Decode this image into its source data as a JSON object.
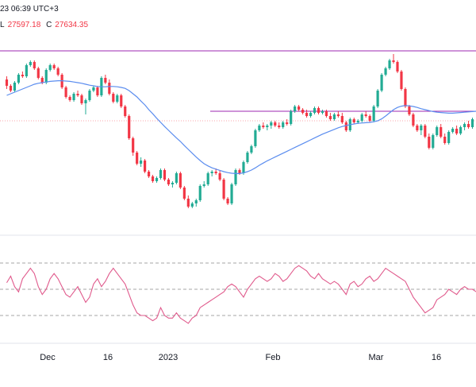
{
  "header": {
    "time_text": "23 06:39 UTC+3",
    "low_label": "L",
    "low_value": "27597.18",
    "close_label": "C",
    "close_value": "27634.35"
  },
  "colors": {
    "up": "#22ab94",
    "down": "#f23645",
    "ma": "#5b8def",
    "rsi": "#e05a8c",
    "hline": "#9c27b0",
    "dashed": "#888888",
    "grid_sep": "#e0e3eb",
    "text": "#131722"
  },
  "chart_data": {
    "type": "candlestick",
    "x_ticks": [
      "Dec",
      "16",
      "2023",
      "Feb",
      "Mar",
      "16"
    ],
    "candles": [
      [
        2.5,
        2.6,
        2.2,
        2.3
      ],
      [
        2.3,
        2.35,
        2.1,
        2.15
      ],
      [
        2.15,
        2.45,
        2.1,
        2.4
      ],
      [
        2.4,
        2.7,
        2.35,
        2.65
      ],
      [
        2.65,
        2.75,
        2.55,
        2.6
      ],
      [
        2.6,
        3.0,
        2.55,
        2.95
      ],
      [
        2.95,
        3.1,
        2.9,
        3.05
      ],
      [
        3.05,
        3.1,
        2.8,
        2.85
      ],
      [
        2.85,
        2.9,
        2.5,
        2.55
      ],
      [
        2.55,
        2.6,
        2.35,
        2.4
      ],
      [
        2.4,
        2.85,
        2.35,
        2.8
      ],
      [
        2.8,
        3.0,
        2.75,
        2.95
      ],
      [
        2.95,
        3.0,
        2.8,
        2.85
      ],
      [
        2.85,
        2.9,
        2.6,
        2.65
      ],
      [
        2.65,
        2.7,
        2.2,
        2.25
      ],
      [
        2.25,
        2.3,
        1.9,
        1.95
      ],
      [
        1.95,
        2.0,
        1.8,
        1.85
      ],
      [
        1.85,
        2.1,
        1.8,
        2.05
      ],
      [
        2.05,
        2.15,
        1.95,
        2.0
      ],
      [
        2.0,
        2.05,
        1.7,
        1.75
      ],
      [
        1.75,
        1.9,
        1.4,
        1.85
      ],
      [
        1.85,
        2.2,
        1.8,
        2.15
      ],
      [
        2.15,
        2.3,
        2.1,
        2.25
      ],
      [
        2.25,
        2.3,
        1.95,
        2.0
      ],
      [
        2.0,
        2.6,
        1.95,
        2.55
      ],
      [
        2.55,
        2.65,
        2.35,
        2.4
      ],
      [
        2.4,
        2.5,
        2.0,
        2.05
      ],
      [
        2.05,
        2.1,
        1.75,
        1.8
      ],
      [
        1.8,
        2.05,
        1.75,
        2.0
      ],
      [
        2.0,
        2.05,
        1.6,
        1.65
      ],
      [
        1.65,
        1.7,
        1.3,
        1.35
      ],
      [
        1.35,
        1.4,
        0.6,
        0.65
      ],
      [
        0.65,
        0.7,
        0.1,
        0.2
      ],
      [
        0.2,
        0.25,
        -0.2,
        -0.15
      ],
      [
        -0.15,
        0.05,
        -0.25,
        -0.05
      ],
      [
        -0.05,
        0.0,
        -0.45,
        -0.4
      ],
      [
        -0.4,
        -0.35,
        -0.6,
        -0.55
      ],
      [
        -0.55,
        -0.5,
        -0.75,
        -0.7
      ],
      [
        -0.7,
        -0.55,
        -0.75,
        -0.6
      ],
      [
        -0.6,
        -0.3,
        -0.65,
        -0.35
      ],
      [
        -0.35,
        -0.3,
        -0.7,
        -0.65
      ],
      [
        -0.65,
        -0.6,
        -0.85,
        -0.8
      ],
      [
        -0.8,
        -0.7,
        -0.9,
        -0.75
      ],
      [
        -0.75,
        -0.4,
        -0.8,
        -0.45
      ],
      [
        -0.45,
        -0.4,
        -0.95,
        -0.9
      ],
      [
        -0.9,
        -0.85,
        -1.3,
        -1.25
      ],
      [
        -1.25,
        -1.15,
        -1.55,
        -1.5
      ],
      [
        -1.5,
        -1.35,
        -1.55,
        -1.4
      ],
      [
        -1.4,
        -1.25,
        -1.5,
        -1.3
      ],
      [
        -1.3,
        -0.8,
        -1.35,
        -0.85
      ],
      [
        -0.85,
        -0.7,
        -0.9,
        -0.8
      ],
      [
        -0.8,
        -0.4,
        -0.85,
        -0.45
      ],
      [
        -0.45,
        -0.35,
        -0.55,
        -0.4
      ],
      [
        -0.4,
        -0.3,
        -0.5,
        -0.45
      ],
      [
        -0.45,
        -0.35,
        -0.7,
        -0.65
      ],
      [
        -0.65,
        -0.6,
        -1.3,
        -1.25
      ],
      [
        -1.25,
        -1.2,
        -1.45,
        -1.4
      ],
      [
        -1.4,
        -0.75,
        -1.45,
        -0.8
      ],
      [
        -0.8,
        -0.3,
        -0.85,
        -0.35
      ],
      [
        -0.35,
        -0.3,
        -0.5,
        -0.45
      ],
      [
        -0.45,
        -0.05,
        -0.5,
        -0.1
      ],
      [
        -0.1,
        0.25,
        -0.15,
        0.2
      ],
      [
        0.2,
        0.45,
        0.15,
        0.4
      ],
      [
        0.4,
        0.95,
        0.35,
        0.9
      ],
      [
        0.9,
        1.1,
        0.85,
        1.05
      ],
      [
        1.05,
        1.15,
        0.95,
        1.0
      ],
      [
        1.0,
        1.1,
        0.9,
        1.05
      ],
      [
        1.05,
        1.2,
        0.95,
        1.15
      ],
      [
        1.15,
        1.2,
        1.0,
        1.05
      ],
      [
        1.05,
        1.15,
        0.95,
        1.0
      ],
      [
        1.0,
        1.2,
        0.95,
        1.15
      ],
      [
        1.15,
        1.25,
        1.05,
        1.1
      ],
      [
        1.1,
        1.55,
        1.05,
        1.5
      ],
      [
        1.5,
        1.7,
        1.45,
        1.65
      ],
      [
        1.65,
        1.7,
        1.5,
        1.55
      ],
      [
        1.55,
        1.6,
        1.4,
        1.45
      ],
      [
        1.45,
        1.55,
        1.3,
        1.35
      ],
      [
        1.35,
        1.5,
        1.3,
        1.45
      ],
      [
        1.45,
        1.65,
        1.4,
        1.6
      ],
      [
        1.6,
        1.65,
        1.4,
        1.45
      ],
      [
        1.45,
        1.55,
        1.4,
        1.5
      ],
      [
        1.5,
        1.55,
        1.3,
        1.35
      ],
      [
        1.35,
        1.45,
        1.2,
        1.25
      ],
      [
        1.25,
        1.45,
        1.2,
        1.4
      ],
      [
        1.4,
        1.5,
        1.3,
        1.35
      ],
      [
        1.35,
        1.45,
        1.1,
        1.15
      ],
      [
        1.15,
        1.2,
        0.85,
        0.9
      ],
      [
        0.9,
        1.3,
        0.85,
        1.25
      ],
      [
        1.25,
        1.3,
        1.1,
        1.15
      ],
      [
        1.15,
        1.25,
        1.1,
        1.2
      ],
      [
        1.2,
        1.45,
        1.15,
        1.4
      ],
      [
        1.4,
        1.5,
        1.3,
        1.35
      ],
      [
        1.35,
        1.4,
        1.15,
        1.2
      ],
      [
        1.2,
        1.7,
        1.15,
        1.65
      ],
      [
        1.65,
        2.2,
        1.6,
        2.15
      ],
      [
        2.15,
        2.7,
        2.1,
        2.65
      ],
      [
        2.65,
        2.9,
        2.6,
        2.85
      ],
      [
        2.85,
        3.15,
        2.8,
        3.1
      ],
      [
        3.1,
        3.3,
        3.0,
        3.05
      ],
      [
        3.05,
        3.1,
        2.7,
        2.75
      ],
      [
        2.75,
        2.8,
        2.15,
        2.2
      ],
      [
        2.2,
        2.25,
        1.6,
        1.65
      ],
      [
        1.65,
        1.7,
        1.35,
        1.4
      ],
      [
        1.4,
        1.45,
        1.0,
        1.05
      ],
      [
        1.05,
        1.1,
        0.85,
        0.9
      ],
      [
        0.9,
        1.1,
        0.75,
        1.05
      ],
      [
        1.05,
        1.1,
        0.65,
        0.7
      ],
      [
        0.7,
        0.8,
        0.3,
        0.35
      ],
      [
        0.35,
        0.8,
        0.3,
        0.75
      ],
      [
        0.75,
        1.05,
        0.7,
        1.0
      ],
      [
        1.0,
        1.1,
        0.65,
        0.7
      ],
      [
        0.7,
        0.8,
        0.45,
        0.5
      ],
      [
        0.5,
        0.9,
        0.45,
        0.85
      ],
      [
        0.85,
        1.0,
        0.8,
        0.95
      ],
      [
        0.95,
        1.05,
        0.75,
        0.8
      ],
      [
        0.8,
        1.05,
        0.75,
        1.0
      ],
      [
        1.0,
        1.15,
        0.9,
        1.1
      ],
      [
        1.1,
        1.2,
        0.95,
        1.0
      ],
      [
        1.0,
        1.3,
        0.95,
        1.25
      ]
    ],
    "ma": [
      2.0,
      2.05,
      2.1,
      2.15,
      2.2,
      2.25,
      2.3,
      2.35,
      2.38,
      2.4,
      2.42,
      2.44,
      2.45,
      2.46,
      2.46,
      2.45,
      2.44,
      2.42,
      2.4,
      2.38,
      2.35,
      2.32,
      2.3,
      2.28,
      2.27,
      2.27,
      2.28,
      2.28,
      2.27,
      2.25,
      2.22,
      2.15,
      2.05,
      1.95,
      1.82,
      1.7,
      1.55,
      1.42,
      1.28,
      1.15,
      1.02,
      0.9,
      0.78,
      0.66,
      0.55,
      0.42,
      0.3,
      0.18,
      0.06,
      -0.05,
      -0.15,
      -0.22,
      -0.28,
      -0.32,
      -0.36,
      -0.4,
      -0.43,
      -0.45,
      -0.46,
      -0.46,
      -0.44,
      -0.4,
      -0.35,
      -0.28,
      -0.2,
      -0.13,
      -0.06,
      0.0,
      0.06,
      0.12,
      0.18,
      0.24,
      0.3,
      0.36,
      0.42,
      0.48,
      0.54,
      0.6,
      0.66,
      0.72,
      0.78,
      0.83,
      0.88,
      0.93,
      0.98,
      1.02,
      1.05,
      1.08,
      1.1,
      1.12,
      1.13,
      1.14,
      1.15,
      1.17,
      1.2,
      1.26,
      1.35,
      1.45,
      1.55,
      1.62,
      1.66,
      1.68,
      1.67,
      1.65,
      1.62,
      1.58,
      1.55,
      1.52,
      1.49,
      1.47,
      1.46,
      1.45,
      1.44,
      1.44,
      1.45,
      1.46,
      1.47,
      1.48,
      1.49,
      1.5
    ],
    "rsi": [
      55,
      60,
      52,
      48,
      58,
      62,
      66,
      62,
      52,
      46,
      50,
      58,
      62,
      58,
      52,
      46,
      44,
      48,
      52,
      46,
      40,
      44,
      54,
      58,
      52,
      56,
      62,
      66,
      62,
      58,
      54,
      46,
      38,
      32,
      30,
      30,
      28,
      26,
      28,
      36,
      30,
      28,
      28,
      32,
      28,
      26,
      24,
      28,
      30,
      36,
      38,
      40,
      42,
      44,
      46,
      48,
      52,
      54,
      52,
      48,
      44,
      50,
      54,
      58,
      60,
      58,
      56,
      58,
      62,
      60,
      56,
      58,
      62,
      66,
      68,
      66,
      64,
      60,
      58,
      62,
      58,
      56,
      54,
      56,
      54,
      50,
      46,
      54,
      56,
      52,
      54,
      58,
      60,
      56,
      58,
      62,
      66,
      64,
      62,
      60,
      58,
      56,
      50,
      44,
      40,
      36,
      32,
      34,
      36,
      42,
      44,
      46,
      50,
      48,
      46,
      50,
      52,
      50,
      50,
      48
    ],
    "h_lines_price": [
      3.4,
      1.5
    ],
    "dotted_price": 1.2,
    "rsi_guides": [
      70,
      50,
      30
    ]
  }
}
